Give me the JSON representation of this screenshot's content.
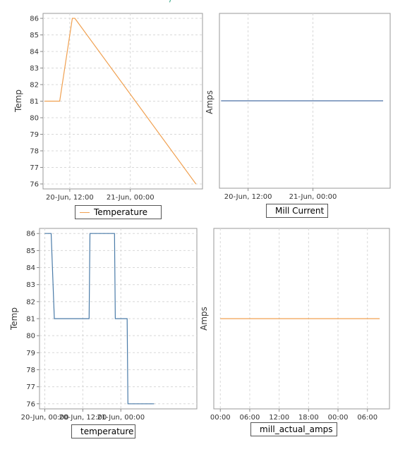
{
  "chart_data": [
    {
      "type": "line",
      "xlabel": "",
      "ylabel": "Temp",
      "ylim": [
        75.7,
        86.3
      ],
      "yticks": [
        76,
        77,
        78,
        79,
        80,
        81,
        82,
        83,
        84,
        85,
        86
      ],
      "xlim": [
        "2017-06-20 06:42",
        "2017-06-21 14:18"
      ],
      "xticks": [
        {
          "label": "20-Jun, 12:00",
          "at": "2017-06-20 12:00"
        },
        {
          "label": "21-Jun, 00:00",
          "at": "2017-06-21 00:00"
        }
      ],
      "grid": true,
      "color": "#f0a050",
      "legend": {
        "position": "bottom"
      },
      "series": [
        {
          "name": "Temperature",
          "x": [
            "2017-06-20 07:00",
            "2017-06-20 10:00",
            "2017-06-20 12:30",
            "2017-06-20 13:00",
            "2017-06-21 13:00"
          ],
          "values": [
            81,
            81,
            86,
            86,
            76
          ]
        }
      ]
    },
    {
      "type": "line",
      "xlabel": "",
      "ylabel": "Amps",
      "xlim": [
        "2017-06-20 06:42",
        "2017-06-21 14:18"
      ],
      "xticks": [
        {
          "label": "20-Jun, 12:00",
          "at": "2017-06-20 12:00"
        },
        {
          "label": "21-Jun, 00:00",
          "at": "2017-06-21 00:00"
        }
      ],
      "grid": true,
      "color": "#4a6fa5",
      "legend": {
        "position": "bottom"
      },
      "series": [
        {
          "name": "Mill Current",
          "x": [
            "2017-06-20 07:00",
            "2017-06-21 13:00"
          ],
          "values": [
            0,
            0
          ]
        }
      ]
    },
    {
      "type": "line",
      "xlabel": "",
      "ylabel": "Temp",
      "ylim": [
        75.7,
        86.3
      ],
      "yticks": [
        76,
        77,
        78,
        79,
        80,
        81,
        82,
        83,
        84,
        85,
        86
      ],
      "xlim": [
        "2017-06-19 22:20",
        "2017-06-22 00:00"
      ],
      "xticks": [
        {
          "label": "20-Jun, 00:00",
          "at": "2017-06-20 00:00"
        },
        {
          "label": "20-Jun, 12:00",
          "at": "2017-06-20 12:00"
        },
        {
          "label": "21-Jun, 00:00",
          "at": "2017-06-21 00:00"
        }
      ],
      "grid": true,
      "color": "#4a7ba8",
      "legend": {
        "position": "bottom"
      },
      "series": [
        {
          "name": "temperature",
          "x": [
            "2017-06-20 00:00",
            "2017-06-20 02:00",
            "2017-06-20 03:00",
            "2017-06-20 14:00",
            "2017-06-20 14:15",
            "2017-06-20 22:00",
            "2017-06-20 22:15",
            "2017-06-21 02:00",
            "2017-06-21 02:15",
            "2017-06-21 10:30"
          ],
          "values": [
            86,
            86,
            81,
            81,
            86,
            86,
            81,
            81,
            76,
            76
          ]
        }
      ]
    },
    {
      "type": "line",
      "xlabel": "",
      "ylabel": "Amps",
      "xlim": [
        "2017-06-20 22:40",
        "2017-06-22 10:30"
      ],
      "xticks": [
        {
          "label": "00:00",
          "at": "2017-06-21 00:00"
        },
        {
          "label": "06:00",
          "at": "2017-06-21 06:00"
        },
        {
          "label": "12:00",
          "at": "2017-06-21 12:00"
        },
        {
          "label": "18:00",
          "at": "2017-06-21 18:00"
        },
        {
          "label": "00:00",
          "at": "2017-06-22 00:00"
        },
        {
          "label": "06:00",
          "at": "2017-06-22 06:00"
        }
      ],
      "grid": true,
      "color": "#f0a050",
      "legend": {
        "position": "bottom"
      },
      "series": [
        {
          "name": "mill_actual_amps",
          "x": [
            "2017-06-21 00:00",
            "2017-06-22 08:30"
          ],
          "values": [
            0,
            0
          ]
        }
      ]
    }
  ]
}
